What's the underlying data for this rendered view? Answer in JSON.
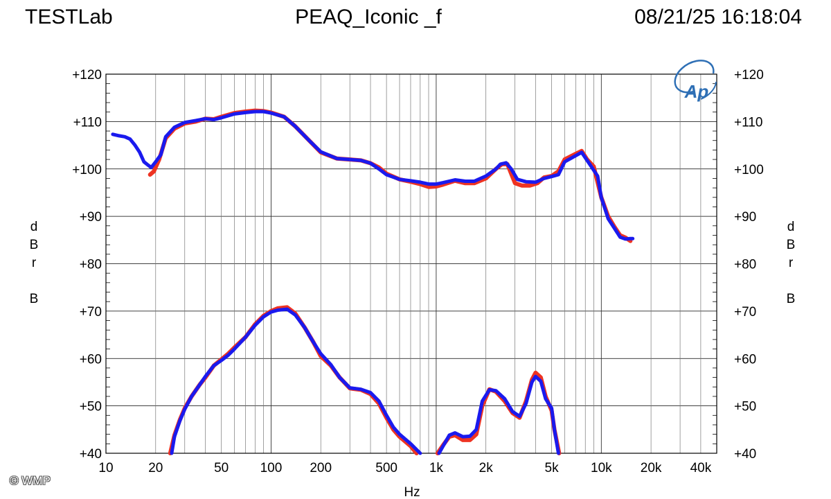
{
  "header": {
    "left": "TESTLab",
    "center": "PEAQ_Iconic _f",
    "right": "08/21/25 16:18:04"
  },
  "credit": "© WMP",
  "logo_text": "Ap",
  "chart_data": {
    "type": "line",
    "title": "PEAQ_Iconic _f",
    "xlabel": "Hz",
    "ylabel": "dBrB",
    "x_scale": "log",
    "xlim": [
      10,
      50000
    ],
    "ylim": [
      40,
      120
    ],
    "grid": true,
    "x_tick_labels": [
      {
        "value": 10,
        "label": "10"
      },
      {
        "value": 20,
        "label": "20"
      },
      {
        "value": 50,
        "label": "50"
      },
      {
        "value": 100,
        "label": "100"
      },
      {
        "value": 200,
        "label": "200"
      },
      {
        "value": 500,
        "label": "500"
      },
      {
        "value": 1000,
        "label": "1k"
      },
      {
        "value": 2000,
        "label": "2k"
      },
      {
        "value": 5000,
        "label": "5k"
      },
      {
        "value": 10000,
        "label": "10k"
      },
      {
        "value": 20000,
        "label": "20k"
      },
      {
        "value": 40000,
        "label": "40k"
      }
    ],
    "y_ticks": [
      {
        "value": 120,
        "label": "+120"
      },
      {
        "value": 110,
        "label": "+110"
      },
      {
        "value": 100,
        "label": "+100"
      },
      {
        "value": 90,
        "label": "+90"
      },
      {
        "value": 80,
        "label": "+80"
      },
      {
        "value": 70,
        "label": "+70"
      },
      {
        "value": 60,
        "label": "+60"
      },
      {
        "value": 50,
        "label": "+50"
      },
      {
        "value": 40,
        "label": "+40"
      }
    ],
    "series": [
      {
        "color": "#ee3322",
        "segments": [
          [
            [
              18.5,
              98.8
            ],
            [
              19.5,
              99.5
            ],
            [
              21,
              102
            ],
            [
              23,
              106.5
            ],
            [
              26,
              108.5
            ],
            [
              30,
              109.6
            ],
            [
              35,
              110
            ],
            [
              40,
              110.6
            ],
            [
              45,
              110.5
            ],
            [
              50,
              111
            ],
            [
              60,
              111.8
            ],
            [
              70,
              112.1
            ],
            [
              80,
              112.3
            ],
            [
              90,
              112.2
            ],
            [
              100,
              111.9
            ],
            [
              120,
              111
            ],
            [
              140,
              109
            ],
            [
              170,
              106
            ],
            [
              200,
              103.5
            ],
            [
              250,
              102.2
            ],
            [
              300,
              102
            ],
            [
              350,
              101.8
            ],
            [
              400,
              101.2
            ],
            [
              450,
              100.3
            ],
            [
              500,
              99
            ],
            [
              600,
              97.8
            ],
            [
              700,
              97.3
            ],
            [
              800,
              96.8
            ],
            [
              900,
              96.2
            ],
            [
              1000,
              96.3
            ],
            [
              1100,
              96.7
            ],
            [
              1300,
              97.5
            ],
            [
              1500,
              97
            ],
            [
              1700,
              97
            ],
            [
              2000,
              98
            ],
            [
              2300,
              100
            ],
            [
              2500,
              101
            ],
            [
              2700,
              101
            ],
            [
              3000,
              97
            ],
            [
              3300,
              96.5
            ],
            [
              3700,
              96.5
            ],
            [
              4100,
              97
            ],
            [
              4500,
              98.2
            ],
            [
              5000,
              98.5
            ],
            [
              5500,
              99.5
            ],
            [
              6000,
              102
            ],
            [
              7000,
              103.2
            ],
            [
              7600,
              103.8
            ],
            [
              8200,
              102
            ],
            [
              9000,
              100.5
            ],
            [
              10000,
              94
            ],
            [
              11000,
              90
            ],
            [
              12000,
              87.8
            ],
            [
              13000,
              86
            ],
            [
              14000,
              85.5
            ],
            [
              15000,
              84.8
            ]
          ],
          [
            [
              24.5,
              40
            ],
            [
              26,
              43.8
            ],
            [
              28,
              47
            ],
            [
              30,
              49.5
            ],
            [
              33,
              52
            ],
            [
              37,
              54.5
            ],
            [
              40,
              56
            ],
            [
              45,
              58.5
            ],
            [
              50,
              59.8
            ],
            [
              55,
              61
            ],
            [
              60,
              62.3
            ],
            [
              70,
              64.5
            ],
            [
              80,
              67.2
            ],
            [
              90,
              69
            ],
            [
              100,
              70
            ],
            [
              110,
              70.6
            ],
            [
              125,
              70.8
            ],
            [
              140,
              69.5
            ],
            [
              160,
              66.5
            ],
            [
              180,
              63.5
            ],
            [
              200,
              60.5
            ],
            [
              230,
              58.5
            ],
            [
              260,
              56
            ],
            [
              300,
              53.7
            ],
            [
              350,
              53.4
            ],
            [
              400,
              52.5
            ],
            [
              450,
              50.5
            ],
            [
              500,
              47.5
            ],
            [
              550,
              45
            ],
            [
              600,
              43.5
            ],
            [
              700,
              41.5
            ],
            [
              760,
              40
            ]
          ],
          [
            [
              1020,
              40
            ],
            [
              1100,
              41.7
            ],
            [
              1200,
              43.5
            ],
            [
              1300,
              43.8
            ],
            [
              1450,
              42.8
            ],
            [
              1600,
              42.8
            ],
            [
              1750,
              44
            ],
            [
              1900,
              50
            ],
            [
              2100,
              53.5
            ],
            [
              2300,
              53
            ],
            [
              2600,
              51
            ],
            [
              2900,
              48.5
            ],
            [
              3200,
              47.5
            ],
            [
              3500,
              51
            ],
            [
              3800,
              55.5
            ],
            [
              4000,
              57
            ],
            [
              4300,
              56
            ],
            [
              4600,
              52
            ],
            [
              5000,
              49
            ],
            [
              5200,
              45
            ],
            [
              5550,
              40
            ]
          ]
        ]
      },
      {
        "color": "#1a1aee",
        "segments": [
          [
            [
              11,
              107.3
            ],
            [
              12,
              107
            ],
            [
              13,
              106.8
            ],
            [
              14,
              106.3
            ],
            [
              15,
              105
            ],
            [
              16,
              103.5
            ],
            [
              17,
              101.5
            ],
            [
              18,
              100.8
            ],
            [
              18.8,
              100.3
            ],
            [
              20,
              101.5
            ],
            [
              21.5,
              103
            ],
            [
              23,
              106.8
            ],
            [
              26,
              108.8
            ],
            [
              30,
              109.8
            ],
            [
              35,
              110.2
            ],
            [
              40,
              110.6
            ],
            [
              45,
              110.4
            ],
            [
              50,
              110.8
            ],
            [
              60,
              111.6
            ],
            [
              70,
              111.9
            ],
            [
              80,
              112.1
            ],
            [
              90,
              112.1
            ],
            [
              100,
              111.8
            ],
            [
              120,
              111
            ],
            [
              140,
              109
            ],
            [
              170,
              106
            ],
            [
              200,
              103.6
            ],
            [
              250,
              102.2
            ],
            [
              300,
              102
            ],
            [
              350,
              101.8
            ],
            [
              400,
              101.2
            ],
            [
              450,
              100
            ],
            [
              500,
              98.8
            ],
            [
              600,
              97.8
            ],
            [
              700,
              97.5
            ],
            [
              800,
              97.2
            ],
            [
              900,
              96.8
            ],
            [
              1000,
              96.8
            ],
            [
              1100,
              97.1
            ],
            [
              1300,
              97.7
            ],
            [
              1500,
              97.4
            ],
            [
              1700,
              97.4
            ],
            [
              2000,
              98.5
            ],
            [
              2300,
              100
            ],
            [
              2450,
              101
            ],
            [
              2650,
              101.3
            ],
            [
              2850,
              100
            ],
            [
              3100,
              97.8
            ],
            [
              3500,
              97.3
            ],
            [
              4000,
              97.2
            ],
            [
              4500,
              98
            ],
            [
              5000,
              98.4
            ],
            [
              5500,
              98.8
            ],
            [
              6000,
              101.5
            ],
            [
              7000,
              102.8
            ],
            [
              7600,
              103.5
            ],
            [
              8500,
              101
            ],
            [
              9500,
              98.5
            ],
            [
              10000,
              94
            ],
            [
              11000,
              89.5
            ],
            [
              12000,
              87.5
            ],
            [
              13000,
              85.6
            ],
            [
              14000,
              85.2
            ],
            [
              15000,
              85.3
            ],
            [
              15500,
              85.3
            ]
          ],
          [
            [
              25,
              40
            ],
            [
              26,
              43.5
            ],
            [
              28,
              46.8
            ],
            [
              30,
              49.3
            ],
            [
              33,
              52
            ],
            [
              37,
              54.5
            ],
            [
              40,
              56.2
            ],
            [
              45,
              58.5
            ],
            [
              50,
              59.6
            ],
            [
              55,
              60.7
            ],
            [
              60,
              62
            ],
            [
              70,
              64.5
            ],
            [
              80,
              67
            ],
            [
              90,
              68.8
            ],
            [
              100,
              69.8
            ],
            [
              110,
              70.2
            ],
            [
              125,
              70.4
            ],
            [
              140,
              69.2
            ],
            [
              160,
              66.5
            ],
            [
              180,
              63.5
            ],
            [
              200,
              61
            ],
            [
              230,
              58.7
            ],
            [
              260,
              56
            ],
            [
              300,
              53.8
            ],
            [
              350,
              53.5
            ],
            [
              400,
              52.8
            ],
            [
              450,
              51
            ],
            [
              500,
              48
            ],
            [
              550,
              45.5
            ],
            [
              600,
              44
            ],
            [
              700,
              42
            ],
            [
              800,
              40
            ]
          ],
          [
            [
              1040,
              40
            ],
            [
              1100,
              41.5
            ],
            [
              1200,
              43.8
            ],
            [
              1300,
              44.3
            ],
            [
              1450,
              43.5
            ],
            [
              1600,
              43.6
            ],
            [
              1750,
              45
            ],
            [
              1900,
              51
            ],
            [
              2100,
              53.4
            ],
            [
              2300,
              53.2
            ],
            [
              2600,
              51.5
            ],
            [
              2900,
              48.8
            ],
            [
              3200,
              47.8
            ],
            [
              3500,
              50.5
            ],
            [
              3800,
              55
            ],
            [
              4000,
              56.2
            ],
            [
              4300,
              55.2
            ],
            [
              4600,
              51.5
            ],
            [
              5000,
              49.5
            ],
            [
              5200,
              45
            ],
            [
              5500,
              40
            ]
          ]
        ]
      }
    ]
  }
}
